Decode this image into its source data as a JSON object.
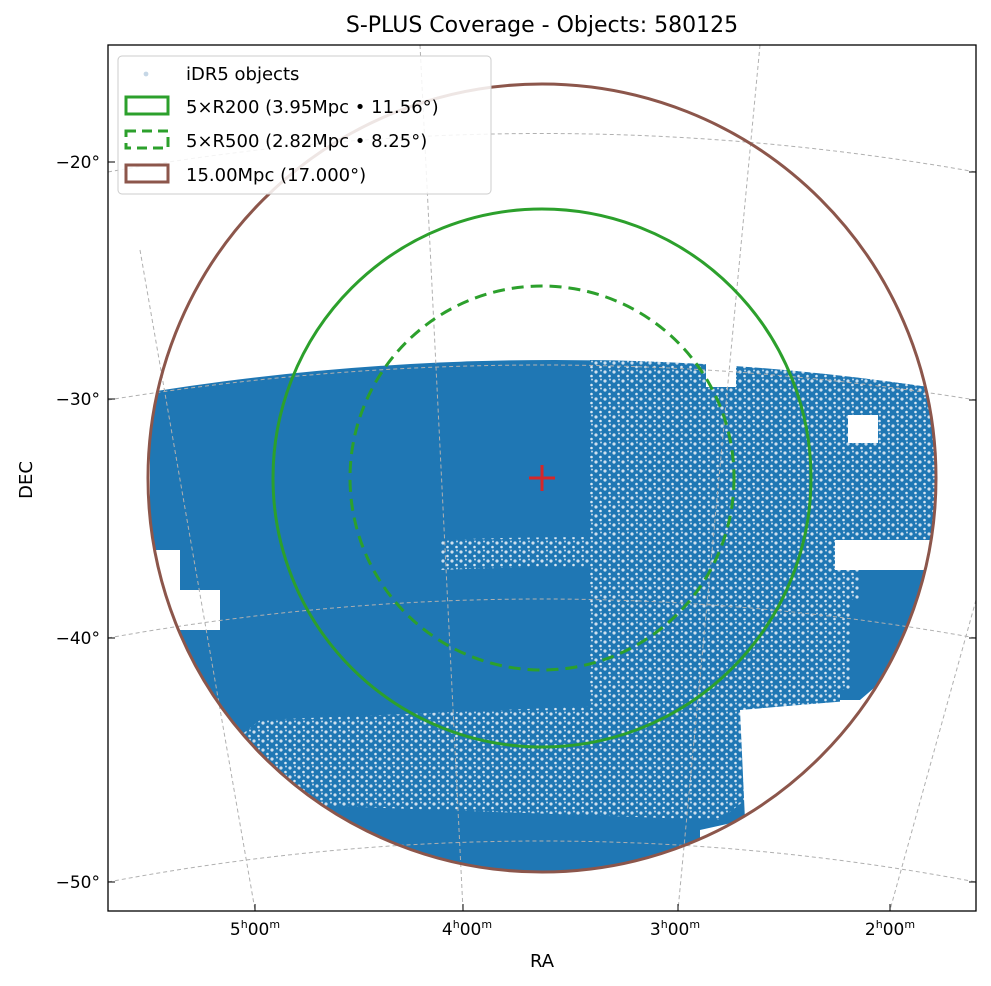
{
  "chart_data": {
    "type": "scatter",
    "title": "S-PLUS Coverage - Objects: 580125",
    "xlabel": "RA",
    "ylabel": "DEC",
    "projection": "sky (gnomonic-like, curved RA/Dec graticule)",
    "x_ticks": [
      {
        "ra_hours": 5,
        "h": "5",
        "m": "00"
      },
      {
        "ra_hours": 4,
        "h": "4",
        "m": "00"
      },
      {
        "ra_hours": 3,
        "h": "3",
        "m": "00"
      },
      {
        "ra_hours": 2,
        "h": "2",
        "m": "00"
      }
    ],
    "y_ticks": [
      {
        "dec": -20,
        "label": "−20°"
      },
      {
        "dec": -30,
        "label": "−30°"
      },
      {
        "dec": -40,
        "label": "−40°"
      },
      {
        "dec": -50,
        "label": "−50°"
      }
    ],
    "grid": true,
    "legend_position": "top-left",
    "center": {
      "ra_hours": 3.64,
      "dec": -33.3,
      "marker": "+",
      "color": "#d62728"
    },
    "series": [
      {
        "name": "iDR5 objects",
        "kind": "points",
        "color": "#1f77b4",
        "count": 580125,
        "footprint": "dense coverage over RA ~1.8h to 5.5h, Dec ~ -28° to -50°, partial striped tiles toward east and south"
      },
      {
        "name": "5×R200 (3.95Mpc • 11.56°)",
        "kind": "circle",
        "radius_deg": 11.56,
        "color": "#2ca02c",
        "style": "solid"
      },
      {
        "name": "5×R500 (2.82Mpc • 8.25°)",
        "kind": "circle",
        "radius_deg": 8.25,
        "color": "#2ca02c",
        "style": "dashed"
      },
      {
        "name": "15.00Mpc (17.000°)",
        "kind": "circle",
        "radius_deg": 17.0,
        "color": "#8c564b",
        "style": "solid"
      }
    ]
  }
}
